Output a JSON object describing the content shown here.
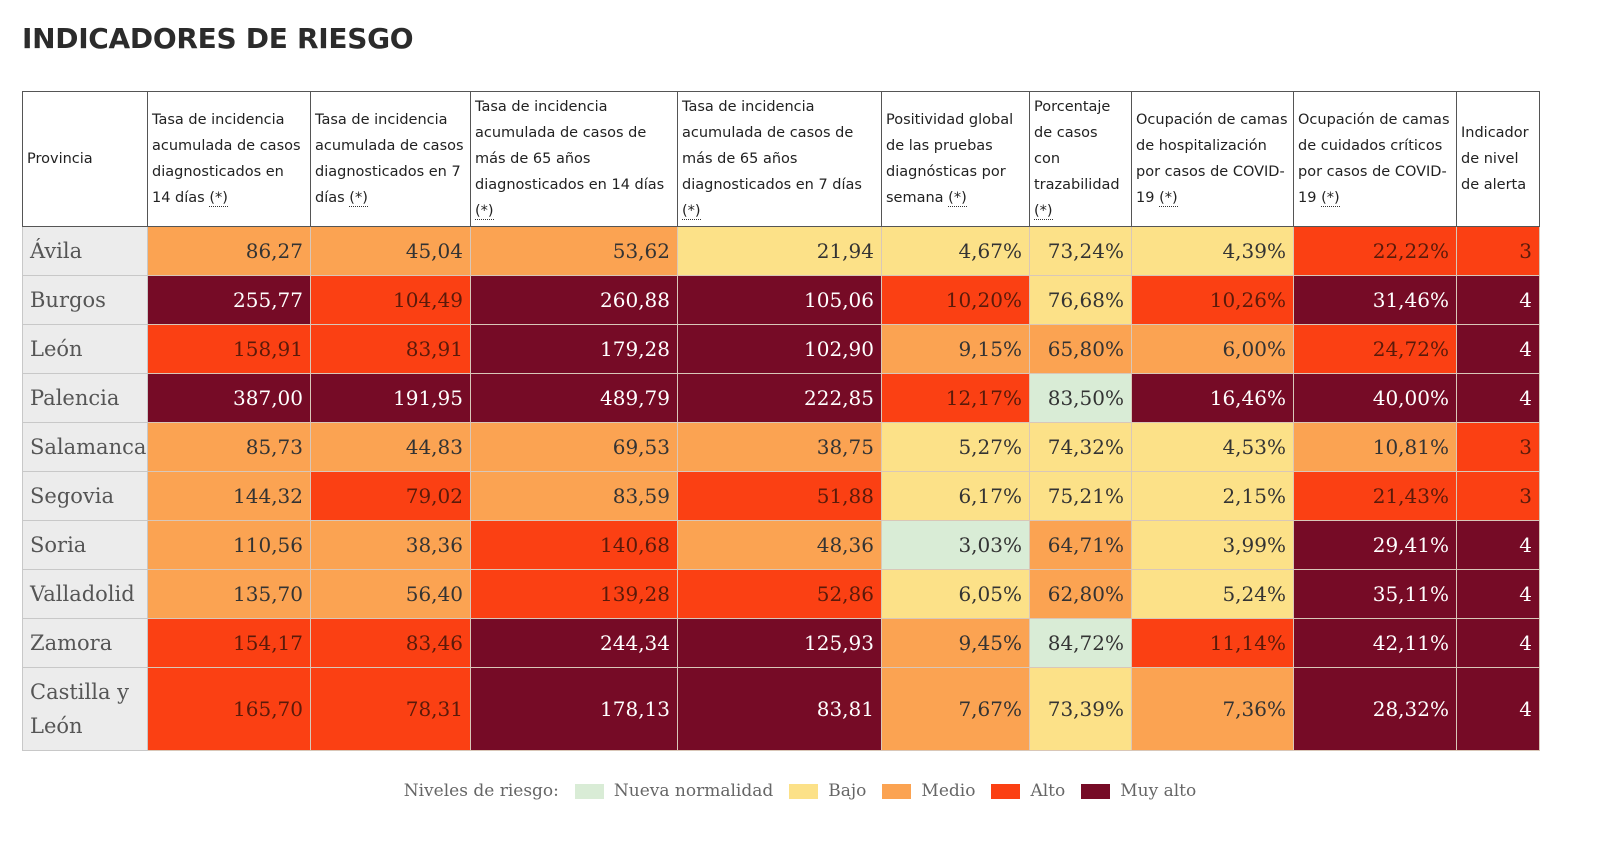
{
  "title": "INDICADORES DE RIESGO",
  "headers": [
    {
      "text": "Provincia",
      "note": ""
    },
    {
      "text": "Tasa de incidencia acumulada de casos diagnosticados en 14 días ",
      "note": "(*)"
    },
    {
      "text": "Tasa de incidencia acumulada de casos diagnosticados en 7 días ",
      "note": "(*)"
    },
    {
      "text": "Tasa de incidencia acumulada de casos de más de 65 años diagnosticados en 14 días ",
      "note": "(*)"
    },
    {
      "text": "Tasa de incidencia acumulada de casos de más de 65 años diagnosticados en 7 días ",
      "note": "(*)"
    },
    {
      "text": "Positividad global de las pruebas diagnósticas por semana ",
      "note": "(*)"
    },
    {
      "text": "Porcentaje de casos con trazabilidad ",
      "note": "(*)"
    },
    {
      "text": "Ocupación de camas de hospitalización por casos de COVID-19 ",
      "note": "(*)"
    },
    {
      "text": "Ocupación de camas de cuidados críticos por casos de COVID-19 ",
      "note": "(*)"
    },
    {
      "text": "Indicador de nivel de alerta",
      "note": ""
    }
  ],
  "rows": [
    {
      "province": "Ávila",
      "cells": [
        {
          "value": "86,27",
          "level": "m"
        },
        {
          "value": "45,04",
          "level": "m"
        },
        {
          "value": "53,62",
          "level": "m"
        },
        {
          "value": "21,94",
          "level": "b"
        },
        {
          "value": "4,67%",
          "level": "b"
        },
        {
          "value": "73,24%",
          "level": "b"
        },
        {
          "value": "4,39%",
          "level": "b"
        },
        {
          "value": "22,22%",
          "level": "a"
        },
        {
          "value": "3",
          "level": "a"
        }
      ]
    },
    {
      "province": "Burgos",
      "cells": [
        {
          "value": "255,77",
          "level": "ma"
        },
        {
          "value": "104,49",
          "level": "a"
        },
        {
          "value": "260,88",
          "level": "ma"
        },
        {
          "value": "105,06",
          "level": "ma"
        },
        {
          "value": "10,20%",
          "level": "a"
        },
        {
          "value": "76,68%",
          "level": "b"
        },
        {
          "value": "10,26%",
          "level": "a"
        },
        {
          "value": "31,46%",
          "level": "ma"
        },
        {
          "value": "4",
          "level": "ma"
        }
      ]
    },
    {
      "province": "León",
      "cells": [
        {
          "value": "158,91",
          "level": "a"
        },
        {
          "value": "83,91",
          "level": "a"
        },
        {
          "value": "179,28",
          "level": "ma"
        },
        {
          "value": "102,90",
          "level": "ma"
        },
        {
          "value": "9,15%",
          "level": "m"
        },
        {
          "value": "65,80%",
          "level": "m"
        },
        {
          "value": "6,00%",
          "level": "m"
        },
        {
          "value": "24,72%",
          "level": "a"
        },
        {
          "value": "4",
          "level": "ma"
        }
      ]
    },
    {
      "province": "Palencia",
      "cells": [
        {
          "value": "387,00",
          "level": "ma"
        },
        {
          "value": "191,95",
          "level": "ma"
        },
        {
          "value": "489,79",
          "level": "ma"
        },
        {
          "value": "222,85",
          "level": "ma"
        },
        {
          "value": "12,17%",
          "level": "a"
        },
        {
          "value": "83,50%",
          "level": "nn"
        },
        {
          "value": "16,46%",
          "level": "ma"
        },
        {
          "value": "40,00%",
          "level": "ma"
        },
        {
          "value": "4",
          "level": "ma"
        }
      ]
    },
    {
      "province": "Salamanca",
      "cells": [
        {
          "value": "85,73",
          "level": "m"
        },
        {
          "value": "44,83",
          "level": "m"
        },
        {
          "value": "69,53",
          "level": "m"
        },
        {
          "value": "38,75",
          "level": "m"
        },
        {
          "value": "5,27%",
          "level": "b"
        },
        {
          "value": "74,32%",
          "level": "b"
        },
        {
          "value": "4,53%",
          "level": "b"
        },
        {
          "value": "10,81%",
          "level": "m"
        },
        {
          "value": "3",
          "level": "a"
        }
      ]
    },
    {
      "province": "Segovia",
      "cells": [
        {
          "value": "144,32",
          "level": "m"
        },
        {
          "value": "79,02",
          "level": "a"
        },
        {
          "value": "83,59",
          "level": "m"
        },
        {
          "value": "51,88",
          "level": "a"
        },
        {
          "value": "6,17%",
          "level": "b"
        },
        {
          "value": "75,21%",
          "level": "b"
        },
        {
          "value": "2,15%",
          "level": "b"
        },
        {
          "value": "21,43%",
          "level": "a"
        },
        {
          "value": "3",
          "level": "a"
        }
      ]
    },
    {
      "province": "Soria",
      "cells": [
        {
          "value": "110,56",
          "level": "m"
        },
        {
          "value": "38,36",
          "level": "m"
        },
        {
          "value": "140,68",
          "level": "a"
        },
        {
          "value": "48,36",
          "level": "m"
        },
        {
          "value": "3,03%",
          "level": "nn"
        },
        {
          "value": "64,71%",
          "level": "m"
        },
        {
          "value": "3,99%",
          "level": "b"
        },
        {
          "value": "29,41%",
          "level": "ma"
        },
        {
          "value": "4",
          "level": "ma"
        }
      ]
    },
    {
      "province": "Valladolid",
      "cells": [
        {
          "value": "135,70",
          "level": "m"
        },
        {
          "value": "56,40",
          "level": "m"
        },
        {
          "value": "139,28",
          "level": "a"
        },
        {
          "value": "52,86",
          "level": "a"
        },
        {
          "value": "6,05%",
          "level": "b"
        },
        {
          "value": "62,80%",
          "level": "m"
        },
        {
          "value": "5,24%",
          "level": "b"
        },
        {
          "value": "35,11%",
          "level": "ma"
        },
        {
          "value": "4",
          "level": "ma"
        }
      ]
    },
    {
      "province": "Zamora",
      "cells": [
        {
          "value": "154,17",
          "level": "a"
        },
        {
          "value": "83,46",
          "level": "a"
        },
        {
          "value": "244,34",
          "level": "ma"
        },
        {
          "value": "125,93",
          "level": "ma"
        },
        {
          "value": "9,45%",
          "level": "m"
        },
        {
          "value": "84,72%",
          "level": "nn"
        },
        {
          "value": "11,14%",
          "level": "a"
        },
        {
          "value": "42,11%",
          "level": "ma"
        },
        {
          "value": "4",
          "level": "ma"
        }
      ]
    },
    {
      "province": "Castilla y León",
      "total": true,
      "cells": [
        {
          "value": "165,70",
          "level": "a"
        },
        {
          "value": "78,31",
          "level": "a"
        },
        {
          "value": "178,13",
          "level": "ma"
        },
        {
          "value": "83,81",
          "level": "ma"
        },
        {
          "value": "7,67%",
          "level": "m"
        },
        {
          "value": "73,39%",
          "level": "b"
        },
        {
          "value": "7,36%",
          "level": "m"
        },
        {
          "value": "28,32%",
          "level": "ma"
        },
        {
          "value": "4",
          "level": "ma"
        }
      ]
    }
  ],
  "legend": {
    "label": "Niveles de riesgo:",
    "items": [
      {
        "key": "nn",
        "label": "Nueva normalidad",
        "color": "#d9ecd6"
      },
      {
        "key": "b",
        "label": "Bajo",
        "color": "#fce188"
      },
      {
        "key": "m",
        "label": "Medio",
        "color": "#fba352"
      },
      {
        "key": "a",
        "label": "Alto",
        "color": "#fb4013"
      },
      {
        "key": "ma",
        "label": "Muy alto",
        "color": "#760b26"
      }
    ]
  }
}
